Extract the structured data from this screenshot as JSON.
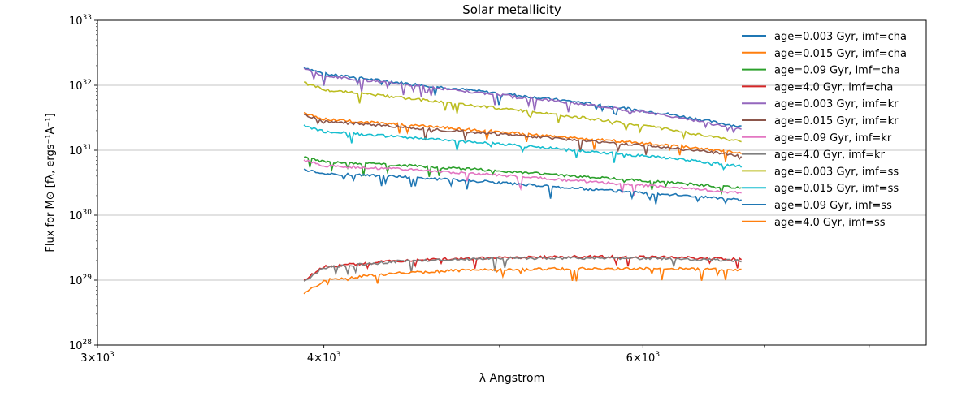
{
  "chart_data": {
    "type": "line",
    "title": "Solar metallicity",
    "xlabel": "λ Angstrom",
    "ylabel": "Flux for M⊙ [fλ, ergs⁻¹A⁻¹]",
    "x_scale": "log",
    "y_scale": "log",
    "xlim": [
      3000,
      8600
    ],
    "ylim": [
      1e+28,
      1e+33
    ],
    "x_major_ticks": [
      {
        "value": 3000,
        "mantissa": "3",
        "exp": "3"
      },
      {
        "value": 4000,
        "mantissa": "4",
        "exp": "3"
      },
      {
        "value": 6000,
        "mantissa": "6",
        "exp": "3"
      }
    ],
    "x_minor_ticks": [
      5000,
      7000,
      8000
    ],
    "y_ticks": [
      {
        "value": 1e+28,
        "base": "10",
        "exp": "28"
      },
      {
        "value": 1e+29,
        "base": "10",
        "exp": "29"
      },
      {
        "value": 1e+30,
        "base": "10",
        "exp": "30"
      },
      {
        "value": 1e+31,
        "base": "10",
        "exp": "31"
      },
      {
        "value": 1e+32,
        "base": "10",
        "exp": "32"
      },
      {
        "value": 1e+33,
        "base": "10",
        "exp": "33"
      }
    ],
    "grid": "horizontal",
    "legend_position": "top-right",
    "series": [
      {
        "name": "age=0.003 Gyr, imf=cha",
        "color": "#1f77b4",
        "x": [
          3900,
          4000,
          4400,
          4900,
          5500,
          6200,
          6800
        ],
        "y": [
          1.9e+32,
          1.5e+32,
          1.1e+32,
          8e+31,
          5.6e+31,
          3.6e+31,
          2.3e+31
        ]
      },
      {
        "name": "age=0.015 Gyr, imf=cha",
        "color": "#ff7f0e",
        "x": [
          3900,
          4000,
          4400,
          4900,
          5500,
          6200,
          6800
        ],
        "y": [
          3.8e+31,
          3e+31,
          2.5e+31,
          2e+31,
          1.55e+31,
          1.2e+31,
          9e+30
        ]
      },
      {
        "name": "age=0.09 Gyr, imf=cha",
        "color": "#2ca02c",
        "x": [
          3900,
          4000,
          4400,
          4900,
          5500,
          6200,
          6800
        ],
        "y": [
          7.8e+30,
          6.6e+30,
          5.9e+30,
          5e+30,
          4e+30,
          3.2e+30,
          2.6e+30
        ]
      },
      {
        "name": "age=4.0 Gyr, imf=cha",
        "color": "#d62728",
        "x": [
          3900,
          4000,
          4400,
          4900,
          5500,
          6200,
          6800
        ],
        "y": [
          1e+29,
          1.6e+29,
          2e+29,
          2.2e+29,
          2.3e+29,
          2.25e+29,
          2.1e+29
        ]
      },
      {
        "name": "age=0.003 Gyr, imf=kr",
        "color": "#9467bd",
        "x": [
          3900,
          4000,
          4400,
          4900,
          5500,
          6200,
          6800
        ],
        "y": [
          1.8e+32,
          1.4e+32,
          1.05e+32,
          7.6e+31,
          5.3e+31,
          3.4e+31,
          2.1e+31
        ]
      },
      {
        "name": "age=0.015 Gyr, imf=kr",
        "color": "#8c564b",
        "x": [
          3900,
          4000,
          4400,
          4900,
          5500,
          6200,
          6800
        ],
        "y": [
          3.5e+31,
          2.8e+31,
          2.3e+31,
          1.85e+31,
          1.45e+31,
          1.1e+31,
          8.3e+30
        ]
      },
      {
        "name": "age=0.09 Gyr, imf=kr",
        "color": "#e377c2",
        "x": [
          3900,
          4000,
          4400,
          4900,
          5500,
          6200,
          6800
        ],
        "y": [
          7e+30,
          5.8e+30,
          5.1e+30,
          4.3e+30,
          3.4e+30,
          2.7e+30,
          2.2e+30
        ]
      },
      {
        "name": "age=4.0 Gyr, imf=kr",
        "color": "#7f7f7f",
        "x": [
          3900,
          4000,
          4400,
          4900,
          5500,
          6200,
          6800
        ],
        "y": [
          9.5e+28,
          1.55e+29,
          1.95e+29,
          2.15e+29,
          2.2e+29,
          2.15e+29,
          2e+29
        ]
      },
      {
        "name": "age=0.003 Gyr, imf=ss",
        "color": "#bcbd22",
        "x": [
          3900,
          4000,
          4400,
          4900,
          5500,
          6200,
          6800
        ],
        "y": [
          1.1e+32,
          8.6e+31,
          6.5e+31,
          4.7e+31,
          3.3e+31,
          2.1e+31,
          1.35e+31
        ]
      },
      {
        "name": "age=0.015 Gyr, imf=ss",
        "color": "#17becf",
        "x": [
          3900,
          4000,
          4400,
          4900,
          5500,
          6200,
          6800
        ],
        "y": [
          2.4e+31,
          1.95e+31,
          1.6e+31,
          1.3e+31,
          1e+31,
          7.6e+30,
          5.7e+30
        ]
      },
      {
        "name": "age=0.09 Gyr, imf=ss",
        "color": "#1f77b4",
        "x": [
          3900,
          4000,
          4400,
          4900,
          5500,
          6200,
          6800
        ],
        "y": [
          5e+30,
          4.4e+30,
          3.9e+30,
          3.3e+30,
          2.6e+30,
          2.1e+30,
          1.7e+30
        ]
      },
      {
        "name": "age=4.0 Gyr, imf=ss",
        "color": "#ff7f0e",
        "x": [
          3900,
          4000,
          4400,
          4900,
          5500,
          6200,
          6800
        ],
        "y": [
          6e+28,
          1e+29,
          1.3e+29,
          1.45e+29,
          1.5e+29,
          1.5e+29,
          1.45e+29
        ]
      }
    ]
  }
}
